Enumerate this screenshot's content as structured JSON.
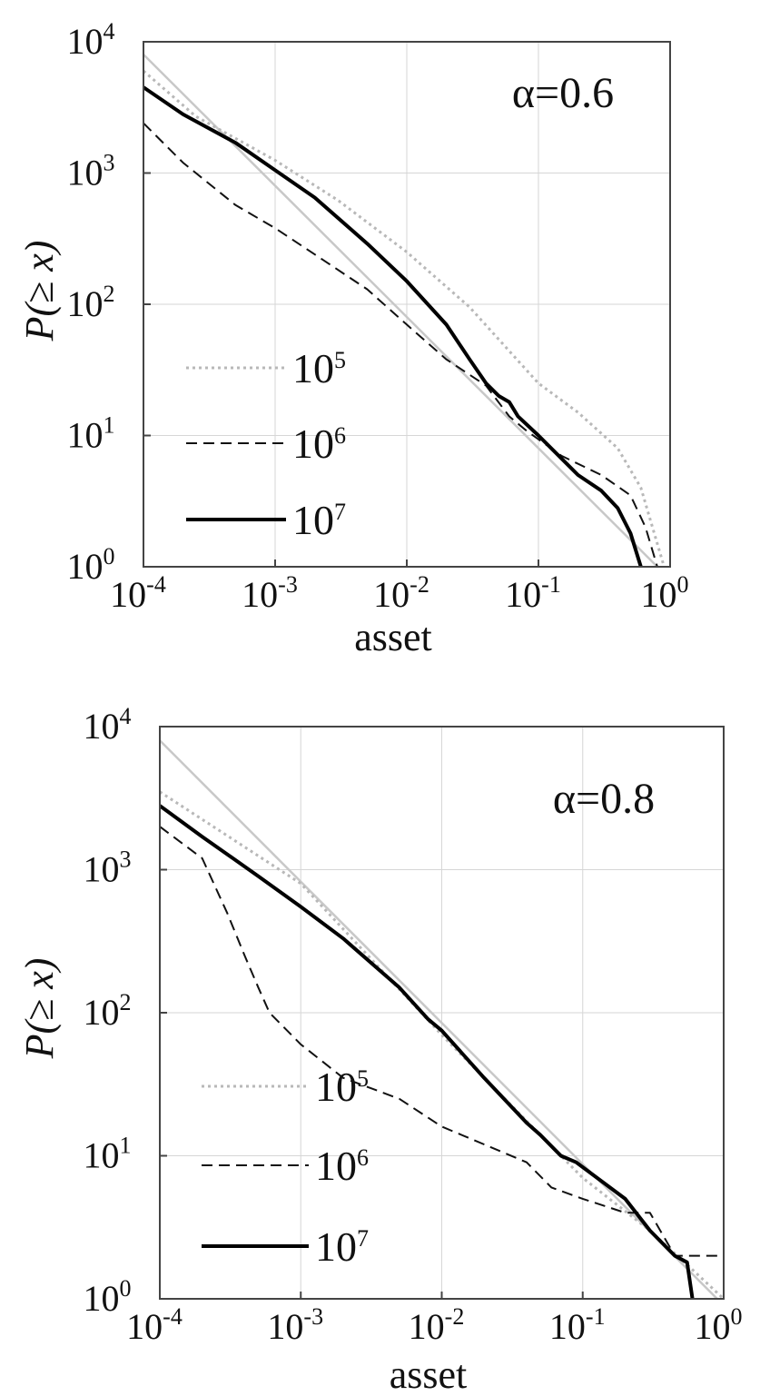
{
  "chart_data": [
    {
      "type": "line",
      "annotation": "α=0.6",
      "xlabel": "asset",
      "ylabel": "P(≥ x)",
      "xscale": "log",
      "yscale": "log",
      "xlim": [
        0.0001,
        1
      ],
      "ylim": [
        1,
        10000
      ],
      "grid": true,
      "legend_position": "left-middle",
      "xticks": [
        {
          "base": "10",
          "exp": "-4"
        },
        {
          "base": "10",
          "exp": "-3"
        },
        {
          "base": "10",
          "exp": "-2"
        },
        {
          "base": "10",
          "exp": "-1"
        },
        {
          "base": "10",
          "exp": "0"
        }
      ],
      "yticks": [
        {
          "base": "10",
          "exp": "0"
        },
        {
          "base": "10",
          "exp": "1"
        },
        {
          "base": "10",
          "exp": "2"
        },
        {
          "base": "10",
          "exp": "3"
        },
        {
          "base": "10",
          "exp": "4"
        }
      ],
      "reference": {
        "points": [
          [
            0.0001,
            8000
          ],
          [
            1,
            0.8
          ]
        ],
        "color": "#c8c8c8"
      },
      "series": [
        {
          "name": "10",
          "name_exp": "5",
          "style": "dotted",
          "color": "#b8b8b8",
          "points": [
            [
              0.0001,
              6000
            ],
            [
              0.00025,
              2700
            ],
            [
              0.001,
              1250
            ],
            [
              0.003,
              620
            ],
            [
              0.01,
              250
            ],
            [
              0.03,
              95
            ],
            [
              0.1,
              25
            ],
            [
              0.2,
              15
            ],
            [
              0.4,
              8
            ],
            [
              0.6,
              4
            ],
            [
              0.8,
              1.5
            ],
            [
              0.9,
              1
            ]
          ]
        },
        {
          "name": "10",
          "name_exp": "6",
          "style": "dashed",
          "color": "#111111",
          "points": [
            [
              0.0001,
              2400
            ],
            [
              0.0002,
              1200
            ],
            [
              0.0005,
              570
            ],
            [
              0.001,
              380
            ],
            [
              0.002,
              240
            ],
            [
              0.005,
              130
            ],
            [
              0.01,
              70
            ],
            [
              0.02,
              38
            ],
            [
              0.04,
              24
            ],
            [
              0.06,
              14
            ],
            [
              0.08,
              11
            ],
            [
              0.15,
              7
            ],
            [
              0.3,
              5
            ],
            [
              0.5,
              3.5
            ],
            [
              0.65,
              2
            ],
            [
              0.8,
              1
            ]
          ]
        },
        {
          "name": "10",
          "name_exp": "7",
          "style": "solid",
          "color": "#000000",
          "points": [
            [
              0.0001,
              4500
            ],
            [
              0.0002,
              2800
            ],
            [
              0.0005,
              1700
            ],
            [
              0.001,
              1050
            ],
            [
              0.002,
              650
            ],
            [
              0.005,
              290
            ],
            [
              0.01,
              150
            ],
            [
              0.02,
              70
            ],
            [
              0.03,
              38
            ],
            [
              0.04,
              25
            ],
            [
              0.05,
              20
            ],
            [
              0.06,
              18
            ],
            [
              0.07,
              14
            ],
            [
              0.1,
              10
            ],
            [
              0.2,
              5
            ],
            [
              0.3,
              3.8
            ],
            [
              0.4,
              2.8
            ],
            [
              0.5,
              1.8
            ],
            [
              0.6,
              1
            ]
          ]
        }
      ]
    },
    {
      "type": "line",
      "annotation": "α=0.8",
      "xlabel": "asset",
      "ylabel": "P(≥ x)",
      "xscale": "log",
      "yscale": "log",
      "xlim": [
        0.0001,
        1
      ],
      "ylim": [
        1,
        10000
      ],
      "grid": true,
      "legend_position": "left-middle",
      "xticks": [
        {
          "base": "10",
          "exp": "-4"
        },
        {
          "base": "10",
          "exp": "-3"
        },
        {
          "base": "10",
          "exp": "-2"
        },
        {
          "base": "10",
          "exp": "-1"
        },
        {
          "base": "10",
          "exp": "0"
        }
      ],
      "yticks": [
        {
          "base": "10",
          "exp": "0"
        },
        {
          "base": "10",
          "exp": "1"
        },
        {
          "base": "10",
          "exp": "2"
        },
        {
          "base": "10",
          "exp": "3"
        },
        {
          "base": "10",
          "exp": "4"
        }
      ],
      "reference": {
        "points": [
          [
            0.0001,
            8000
          ],
          [
            1,
            0.9
          ]
        ],
        "color": "#c8c8c8"
      },
      "series": [
        {
          "name": "10",
          "name_exp": "5",
          "style": "dotted",
          "color": "#b8b8b8",
          "points": [
            [
              0.0001,
              3500
            ],
            [
              0.001,
              800
            ],
            [
              0.01,
              70
            ],
            [
              0.1,
              7
            ],
            [
              0.3,
              3
            ],
            [
              0.6,
              1.6
            ],
            [
              1,
              1
            ]
          ]
        },
        {
          "name": "10",
          "name_exp": "6",
          "style": "dashed",
          "color": "#111111",
          "points": [
            [
              0.0001,
              2000
            ],
            [
              0.0002,
              1200
            ],
            [
              0.0003,
              500
            ],
            [
              0.0004,
              250
            ],
            [
              0.0005,
              150
            ],
            [
              0.0006,
              100
            ],
            [
              0.001,
              60
            ],
            [
              0.002,
              35
            ],
            [
              0.005,
              25
            ],
            [
              0.01,
              16
            ],
            [
              0.02,
              12
            ],
            [
              0.04,
              9
            ],
            [
              0.06,
              6
            ],
            [
              0.1,
              5
            ],
            [
              0.2,
              4
            ],
            [
              0.3,
              4
            ],
            [
              0.45,
              2
            ],
            [
              1,
              2
            ]
          ]
        },
        {
          "name": "10",
          "name_exp": "7",
          "style": "solid",
          "color": "#000000",
          "points": [
            [
              0.0001,
              2800
            ],
            [
              0.0002,
              1700
            ],
            [
              0.0005,
              900
            ],
            [
              0.001,
              550
            ],
            [
              0.002,
              330
            ],
            [
              0.005,
              150
            ],
            [
              0.008,
              90
            ],
            [
              0.01,
              75
            ],
            [
              0.02,
              35
            ],
            [
              0.04,
              17
            ],
            [
              0.05,
              14
            ],
            [
              0.07,
              10
            ],
            [
              0.09,
              9
            ],
            [
              0.2,
              5
            ],
            [
              0.3,
              3
            ],
            [
              0.45,
              2
            ],
            [
              0.55,
              1.8
            ],
            [
              0.6,
              1
            ]
          ]
        }
      ]
    }
  ]
}
